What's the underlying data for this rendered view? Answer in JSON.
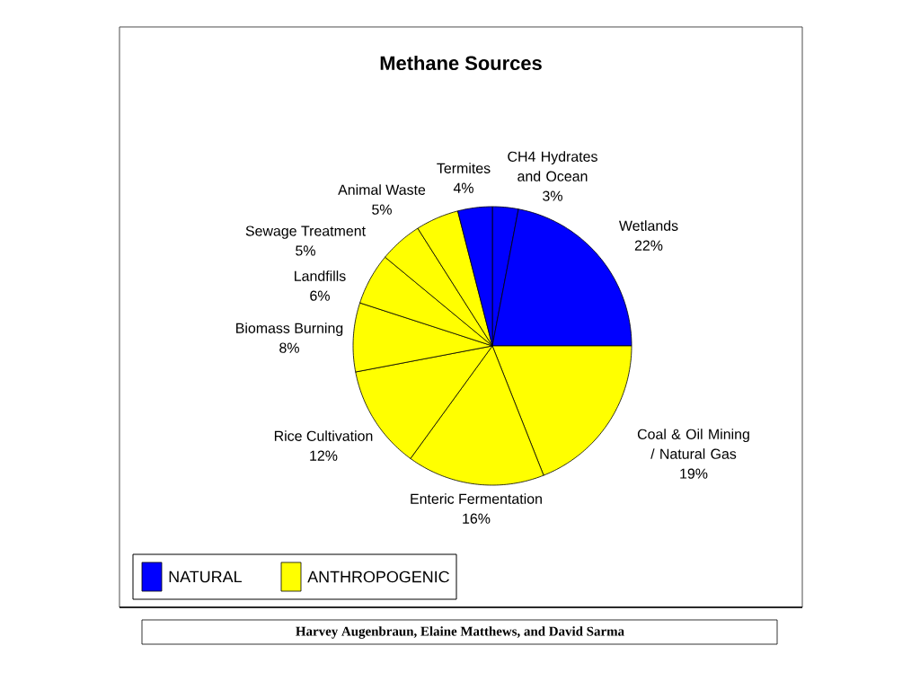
{
  "chart_data": [
    {
      "type": "pie",
      "title": "Methane Sources",
      "categories": [
        "CH4 Hydrates and Ocean",
        "Wetlands",
        "Coal & Oil Mining / Natural Gas",
        "Enteric Fermentation",
        "Rice Cultivation",
        "Biomass Burning",
        "Landfills",
        "Sewage Treatment",
        "Animal Waste",
        "Termites"
      ],
      "values": [
        3,
        22,
        19,
        16,
        12,
        8,
        6,
        5,
        5,
        4
      ],
      "colors": [
        "#0000ff",
        "#0000ff",
        "#ffff00",
        "#ffff00",
        "#ffff00",
        "#ffff00",
        "#ffff00",
        "#ffff00",
        "#ffff00",
        "#0000ff"
      ],
      "value_labels": [
        "3%",
        "22%",
        "19%",
        "16%",
        "12%",
        "8%",
        "6%",
        "5%",
        "5%",
        "4%"
      ],
      "annotations": [
        "Harvey Augenbraun, Elaine Matthews, and David Sarma"
      ]
    },
    {
      "type": "other",
      "categories": [
        "NATURAL",
        "ANTHROPOGENIC"
      ],
      "colors": [
        "#0000ff",
        "#ffff00"
      ]
    }
  ]
}
